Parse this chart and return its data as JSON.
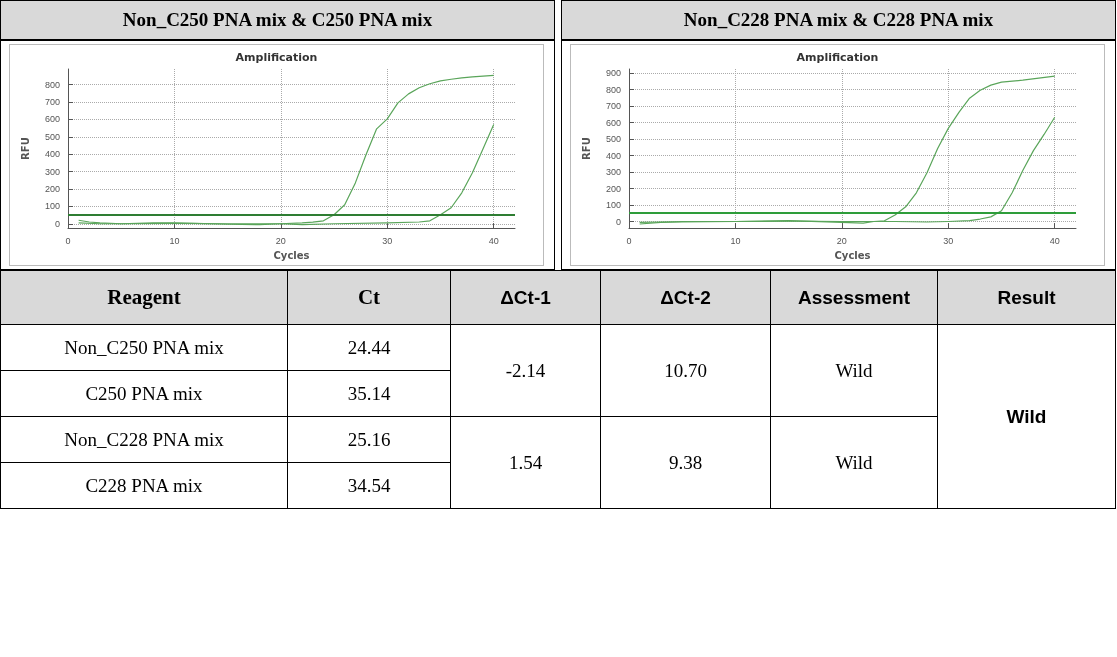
{
  "chart_data": [
    {
      "type": "line",
      "title": "Non_C250 PNA mix & C250 PNA mix",
      "subtitle": "Amplification",
      "xlabel": "Cycles",
      "ylabel": "RFU",
      "xlim": [
        0,
        42
      ],
      "xticks": [
        0,
        10,
        20,
        30,
        40
      ],
      "ylim": [
        -25,
        890
      ],
      "yticks": [
        0,
        100,
        200,
        300,
        400,
        500,
        600,
        700,
        800
      ],
      "grid": true,
      "marker": "none",
      "line_style": "solid",
      "ref_lines": [
        {
          "axis": "y",
          "value": 52,
          "color": "#2e7d32"
        }
      ],
      "series": [
        {
          "color": "#5aa55a",
          "x": [
            1,
            2,
            3,
            5,
            8,
            10,
            12,
            15,
            18,
            20,
            22,
            23,
            24,
            25,
            26,
            27,
            28,
            29,
            30,
            31,
            32,
            33,
            34,
            35,
            36,
            37,
            38,
            40
          ],
          "values": [
            20,
            10,
            5,
            0,
            5,
            5,
            2,
            -3,
            -5,
            0,
            5,
            9,
            17,
            52,
            109,
            235,
            397,
            546,
            603,
            695,
            747,
            782,
            805,
            822,
            831,
            839,
            845,
            853
          ]
        },
        {
          "color": "#5aa55a",
          "x": [
            1,
            3,
            5,
            10,
            15,
            20,
            22,
            25,
            30,
            33,
            34,
            35,
            36,
            37,
            38,
            39,
            40
          ],
          "values": [
            5,
            0,
            0,
            2,
            0,
            0,
            -5,
            0,
            5,
            10,
            17,
            52,
            92,
            178,
            293,
            431,
            571
          ]
        }
      ]
    },
    {
      "type": "line",
      "title": "Non_C228 PNA mix & C228 PNA mix",
      "subtitle": "Amplification",
      "xlabel": "Cycles",
      "ylabel": "RFU",
      "xlim": [
        0,
        42
      ],
      "xticks": [
        0,
        10,
        20,
        30,
        40
      ],
      "ylim": [
        -40,
        925
      ],
      "yticks": [
        0,
        100,
        200,
        300,
        400,
        500,
        600,
        700,
        800,
        900
      ],
      "grid": true,
      "marker": "none",
      "line_style": "solid",
      "ref_lines": [
        {
          "axis": "y",
          "value": 52,
          "color": "#2e9d3a"
        }
      ],
      "series": [
        {
          "color": "#5aa55a",
          "x": [
            1,
            3,
            5,
            10,
            15,
            20,
            22,
            23,
            24,
            25,
            26,
            27,
            28,
            29,
            30,
            31,
            32,
            33,
            34,
            35,
            37,
            40
          ],
          "values": [
            -15,
            -5,
            -3,
            0,
            5,
            -5,
            -10,
            0,
            4,
            40,
            89,
            174,
            296,
            443,
            565,
            662,
            748,
            796,
            827,
            845,
            857,
            882
          ]
        },
        {
          "color": "#5aa55a",
          "x": [
            1,
            3,
            5,
            10,
            15,
            20,
            25,
            28,
            30,
            32,
            33,
            34,
            35,
            36,
            37,
            38,
            39,
            40
          ],
          "values": [
            -5,
            -3,
            0,
            0,
            2,
            0,
            0,
            -3,
            0,
            5,
            15,
            28,
            65,
            174,
            309,
            430,
            528,
            632
          ]
        }
      ]
    },
    {
      "type": "other",
      "annotations": [
        "Reagent",
        "Ct",
        "ΔCt-1",
        "ΔCt-2",
        "Assessment",
        "Result",
        "Non_C250 PNA mix",
        "24.44",
        "-2.14",
        "10.70",
        "Wild",
        "Wild",
        "C250 PNA mix",
        "35.14",
        "Non_C228 PNA mix",
        "25.16",
        "1.54",
        "9.38",
        "Wild",
        "C228 PNA mix",
        "34.54"
      ]
    }
  ]
}
